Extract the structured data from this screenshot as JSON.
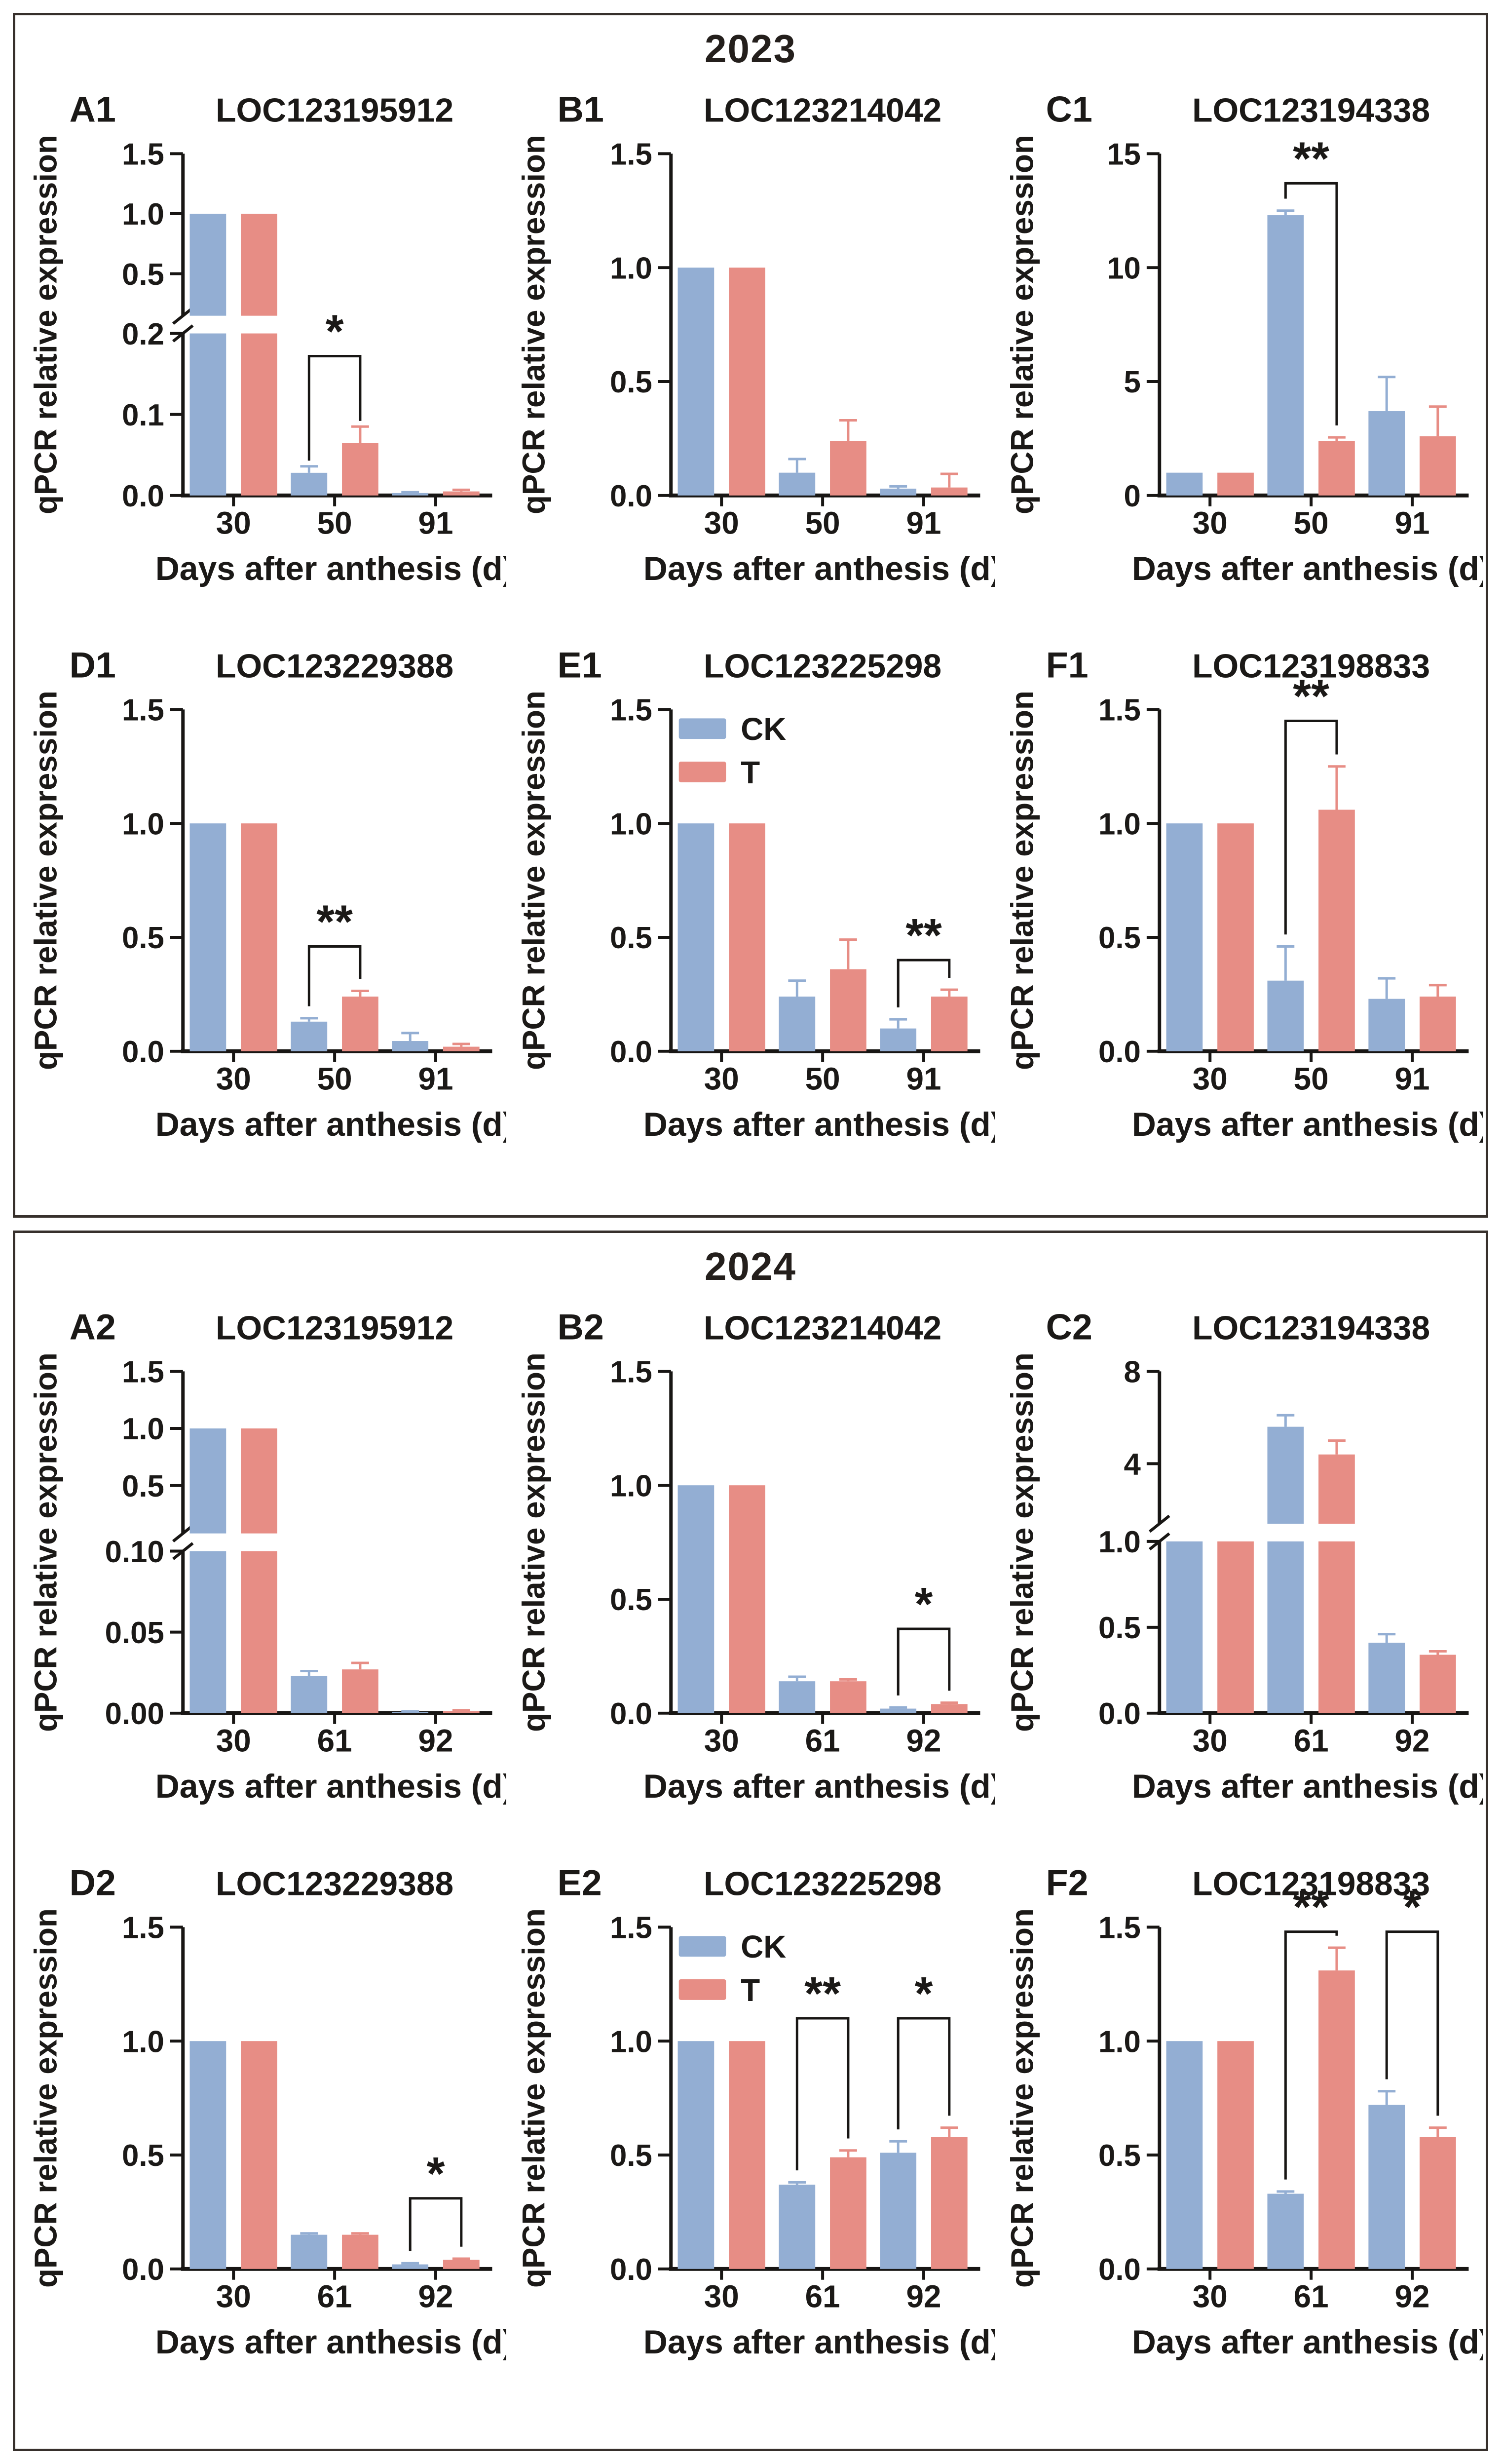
{
  "colors": {
    "ck": "#93AED3",
    "t": "#E78D85",
    "axis": "#181614",
    "frame": "#37302c"
  },
  "legend_labels": {
    "ck": "CK",
    "t": "T"
  },
  "sections": [
    {
      "year": "2023"
    },
    {
      "year": "2024"
    }
  ],
  "chart_data": [
    {
      "panel": "A1",
      "section": 0,
      "type": "bar",
      "title": "LOC123195912",
      "xlabel": "Days after anthesis (d)",
      "ylabel": "qPCR relative expression",
      "categories": [
        "30",
        "50",
        "91"
      ],
      "legend": false,
      "series": [
        {
          "name": "CK",
          "values": [
            1.0,
            0.028,
            0.003
          ],
          "errors": [
            0,
            0.008,
            0.001
          ]
        },
        {
          "name": "T",
          "values": [
            1.0,
            0.065,
            0.005
          ],
          "errors": [
            0,
            0.02,
            0.002
          ]
        }
      ],
      "axis": {
        "broken": true,
        "segments": [
          {
            "range": [
              0,
              0.2
            ],
            "hfrac": 0.5,
            "ticks": [
              {
                "v": 0,
                "l": "0.0"
              },
              {
                "v": 0.1,
                "l": "0.1"
              },
              {
                "v": 0.2,
                "l": "0.2"
              }
            ]
          },
          {
            "range": [
              0.15,
              1.5
            ],
            "hfrac": 0.5,
            "ticks": [
              {
                "v": 0.5,
                "l": "0.5"
              },
              {
                "v": 1.0,
                "l": "1.0"
              },
              {
                "v": 1.5,
                "l": "1.5"
              }
            ]
          }
        ]
      },
      "sig": [
        {
          "cat": 1,
          "label": "*",
          "top": 0.172
        }
      ]
    },
    {
      "panel": "B1",
      "section": 0,
      "type": "bar",
      "title": "LOC123214042",
      "xlabel": "Days after anthesis (d)",
      "ylabel": "qPCR relative expression",
      "categories": [
        "30",
        "50",
        "91"
      ],
      "legend": false,
      "series": [
        {
          "name": "CK",
          "values": [
            1.0,
            0.1,
            0.03
          ],
          "errors": [
            0,
            0.06,
            0.01
          ]
        },
        {
          "name": "T",
          "values": [
            1.0,
            0.24,
            0.035
          ],
          "errors": [
            0,
            0.09,
            0.06
          ]
        }
      ],
      "axis": {
        "broken": false,
        "segments": [
          {
            "range": [
              0,
              1.5
            ],
            "ticks": [
              {
                "v": 0,
                "l": "0.0"
              },
              {
                "v": 0.5,
                "l": "0.5"
              },
              {
                "v": 1.0,
                "l": "1.0"
              },
              {
                "v": 1.5,
                "l": "1.5"
              }
            ]
          }
        ]
      },
      "sig": []
    },
    {
      "panel": "C1",
      "section": 0,
      "type": "bar",
      "title": "LOC123194338",
      "xlabel": "Days after anthesis (d)",
      "ylabel": "qPCR relative expression",
      "categories": [
        "30",
        "50",
        "91"
      ],
      "legend": false,
      "series": [
        {
          "name": "CK",
          "values": [
            1.0,
            12.3,
            3.7
          ],
          "errors": [
            0,
            0.2,
            1.5
          ]
        },
        {
          "name": "T",
          "values": [
            1.0,
            2.4,
            2.6
          ],
          "errors": [
            0,
            0.15,
            1.3
          ]
        }
      ],
      "axis": {
        "broken": false,
        "segments": [
          {
            "range": [
              0,
              15
            ],
            "ticks": [
              {
                "v": 0,
                "l": "0"
              },
              {
                "v": 5,
                "l": "5"
              },
              {
                "v": 10,
                "l": "10"
              },
              {
                "v": 15,
                "l": "15"
              }
            ]
          }
        ]
      },
      "sig": [
        {
          "cat": 1,
          "label": "**",
          "top": 13.7
        }
      ]
    },
    {
      "panel": "D1",
      "section": 0,
      "type": "bar",
      "title": "LOC123229388",
      "xlabel": "Days after anthesis (d)",
      "ylabel": "qPCR relative expression",
      "categories": [
        "30",
        "50",
        "91"
      ],
      "legend": false,
      "series": [
        {
          "name": "CK",
          "values": [
            1.0,
            0.13,
            0.045
          ],
          "errors": [
            0,
            0.015,
            0.035
          ]
        },
        {
          "name": "T",
          "values": [
            1.0,
            0.24,
            0.02
          ],
          "errors": [
            0,
            0.025,
            0.012
          ]
        }
      ],
      "axis": {
        "broken": false,
        "segments": [
          {
            "range": [
              0,
              1.5
            ],
            "ticks": [
              {
                "v": 0,
                "l": "0.0"
              },
              {
                "v": 0.5,
                "l": "0.5"
              },
              {
                "v": 1.0,
                "l": "1.0"
              },
              {
                "v": 1.5,
                "l": "1.5"
              }
            ]
          }
        ]
      },
      "sig": [
        {
          "cat": 1,
          "label": "**",
          "top": 0.46
        }
      ]
    },
    {
      "panel": "E1",
      "section": 0,
      "type": "bar",
      "title": "LOC123225298",
      "xlabel": "Days after anthesis (d)",
      "ylabel": "qPCR relative expression",
      "categories": [
        "30",
        "50",
        "91"
      ],
      "legend": true,
      "series": [
        {
          "name": "CK",
          "values": [
            1.0,
            0.24,
            0.1
          ],
          "errors": [
            0,
            0.07,
            0.04
          ]
        },
        {
          "name": "T",
          "values": [
            1.0,
            0.36,
            0.24
          ],
          "errors": [
            0,
            0.13,
            0.03
          ]
        }
      ],
      "axis": {
        "broken": false,
        "segments": [
          {
            "range": [
              0,
              1.5
            ],
            "ticks": [
              {
                "v": 0,
                "l": "0.0"
              },
              {
                "v": 0.5,
                "l": "0.5"
              },
              {
                "v": 1.0,
                "l": "1.0"
              },
              {
                "v": 1.5,
                "l": "1.5"
              }
            ]
          }
        ]
      },
      "sig": [
        {
          "cat": 2,
          "label": "**",
          "top": 0.4
        }
      ]
    },
    {
      "panel": "F1",
      "section": 0,
      "type": "bar",
      "title": "LOC123198833",
      "xlabel": "Days after anthesis (d)",
      "ylabel": "qPCR relative expression",
      "categories": [
        "30",
        "50",
        "91"
      ],
      "legend": false,
      "series": [
        {
          "name": "CK",
          "values": [
            1.0,
            0.31,
            0.23
          ],
          "errors": [
            0,
            0.15,
            0.09
          ]
        },
        {
          "name": "T",
          "values": [
            1.0,
            1.06,
            0.24
          ],
          "errors": [
            0,
            0.19,
            0.05
          ]
        }
      ],
      "axis": {
        "broken": false,
        "segments": [
          {
            "range": [
              0,
              1.5
            ],
            "ticks": [
              {
                "v": 0,
                "l": "0.0"
              },
              {
                "v": 0.5,
                "l": "0.5"
              },
              {
                "v": 1.0,
                "l": "1.0"
              },
              {
                "v": 1.5,
                "l": "1.5"
              }
            ]
          }
        ]
      },
      "sig": [
        {
          "cat": 1,
          "label": "**",
          "top": 1.45
        }
      ]
    },
    {
      "panel": "A2",
      "section": 1,
      "type": "bar",
      "title": "LOC123195912",
      "xlabel": "Days after anthesis (d)",
      "ylabel": "qPCR relative expression",
      "categories": [
        "30",
        "61",
        "92"
      ],
      "legend": false,
      "series": [
        {
          "name": "CK",
          "values": [
            1.0,
            0.023,
            0.0006
          ],
          "errors": [
            0,
            0.003,
            0.0004
          ]
        },
        {
          "name": "T",
          "values": [
            1.0,
            0.027,
            0.0012
          ],
          "errors": [
            0,
            0.004,
            0.0006
          ]
        }
      ],
      "axis": {
        "broken": true,
        "segments": [
          {
            "range": [
              0,
              0.1
            ],
            "hfrac": 0.5,
            "ticks": [
              {
                "v": 0,
                "l": "0.00"
              },
              {
                "v": 0.05,
                "l": "0.05"
              },
              {
                "v": 0.1,
                "l": "0.10"
              }
            ]
          },
          {
            "range": [
              0.08,
              1.5
            ],
            "hfrac": 0.5,
            "ticks": [
              {
                "v": 0.5,
                "l": "0.5"
              },
              {
                "v": 1.0,
                "l": "1.0"
              },
              {
                "v": 1.5,
                "l": "1.5"
              }
            ]
          }
        ]
      },
      "sig": []
    },
    {
      "panel": "B2",
      "section": 1,
      "type": "bar",
      "title": "LOC123214042",
      "xlabel": "Days after anthesis (d)",
      "ylabel": "qPCR relative expression",
      "categories": [
        "30",
        "61",
        "92"
      ],
      "legend": false,
      "series": [
        {
          "name": "CK",
          "values": [
            1.0,
            0.14,
            0.02
          ],
          "errors": [
            0,
            0.02,
            0.005
          ]
        },
        {
          "name": "T",
          "values": [
            1.0,
            0.14,
            0.04
          ],
          "errors": [
            0,
            0.008,
            0.006
          ]
        }
      ],
      "axis": {
        "broken": false,
        "segments": [
          {
            "range": [
              0,
              1.5
            ],
            "ticks": [
              {
                "v": 0,
                "l": "0.0"
              },
              {
                "v": 0.5,
                "l": "0.5"
              },
              {
                "v": 1.0,
                "l": "1.0"
              },
              {
                "v": 1.5,
                "l": "1.5"
              }
            ]
          }
        ]
      },
      "sig": [
        {
          "cat": 2,
          "label": "*",
          "top": 0.37
        }
      ]
    },
    {
      "panel": "C2",
      "section": 1,
      "type": "bar",
      "title": "LOC123194338",
      "xlabel": "Days after anthesis (d)",
      "ylabel": "qPCR relative expression",
      "categories": [
        "30",
        "61",
        "92"
      ],
      "legend": false,
      "series": [
        {
          "name": "CK",
          "values": [
            1.0,
            5.6,
            0.41
          ],
          "errors": [
            0,
            0.5,
            0.05
          ]
        },
        {
          "name": "T",
          "values": [
            1.0,
            4.4,
            0.34
          ],
          "errors": [
            0,
            0.6,
            0.02
          ]
        }
      ],
      "axis": {
        "broken": true,
        "segments": [
          {
            "range": [
              0,
              1.0
            ],
            "hfrac": 0.53,
            "ticks": [
              {
                "v": 0,
                "l": "0.0"
              },
              {
                "v": 0.5,
                "l": "0.5"
              },
              {
                "v": 1.0,
                "l": "1.0"
              }
            ]
          },
          {
            "range": [
              1.4,
              8
            ],
            "hfrac": 0.47,
            "ticks": [
              {
                "v": 4,
                "l": "4"
              },
              {
                "v": 8,
                "l": "8"
              }
            ]
          }
        ]
      },
      "sig": []
    },
    {
      "panel": "D2",
      "section": 1,
      "type": "bar",
      "title": "LOC123229388",
      "xlabel": "Days after anthesis (d)",
      "ylabel": "qPCR relative expression",
      "categories": [
        "30",
        "61",
        "92"
      ],
      "legend": false,
      "series": [
        {
          "name": "CK",
          "values": [
            1.0,
            0.15,
            0.02
          ],
          "errors": [
            0,
            0.006,
            0.005
          ]
        },
        {
          "name": "T",
          "values": [
            1.0,
            0.15,
            0.04
          ],
          "errors": [
            0,
            0.006,
            0.005
          ]
        }
      ],
      "axis": {
        "broken": false,
        "segments": [
          {
            "range": [
              0,
              1.5
            ],
            "ticks": [
              {
                "v": 0,
                "l": "0.0"
              },
              {
                "v": 0.5,
                "l": "0.5"
              },
              {
                "v": 1.0,
                "l": "1.0"
              },
              {
                "v": 1.5,
                "l": "1.5"
              }
            ]
          }
        ]
      },
      "sig": [
        {
          "cat": 2,
          "label": "*",
          "top": 0.31
        }
      ]
    },
    {
      "panel": "E2",
      "section": 1,
      "type": "bar",
      "title": "LOC123225298",
      "xlabel": "Days after anthesis (d)",
      "ylabel": "qPCR relative expression",
      "categories": [
        "30",
        "61",
        "92"
      ],
      "legend": true,
      "series": [
        {
          "name": "CK",
          "values": [
            1.0,
            0.37,
            0.51
          ],
          "errors": [
            0,
            0.01,
            0.05
          ]
        },
        {
          "name": "T",
          "values": [
            1.0,
            0.49,
            0.58
          ],
          "errors": [
            0,
            0.03,
            0.04
          ]
        }
      ],
      "axis": {
        "broken": false,
        "segments": [
          {
            "range": [
              0,
              1.5
            ],
            "ticks": [
              {
                "v": 0,
                "l": "0.0"
              },
              {
                "v": 0.5,
                "l": "0.5"
              },
              {
                "v": 1.0,
                "l": "1.0"
              },
              {
                "v": 1.5,
                "l": "1.5"
              }
            ]
          }
        ]
      },
      "sig": [
        {
          "cat": 1,
          "label": "**",
          "top": 1.1
        },
        {
          "cat": 2,
          "label": "*",
          "top": 1.1
        }
      ]
    },
    {
      "panel": "F2",
      "section": 1,
      "type": "bar",
      "title": "LOC123198833",
      "xlabel": "Days after anthesis (d)",
      "ylabel": "qPCR relative expression",
      "categories": [
        "30",
        "61",
        "92"
      ],
      "legend": false,
      "series": [
        {
          "name": "CK",
          "values": [
            1.0,
            0.33,
            0.72
          ],
          "errors": [
            0,
            0.01,
            0.06
          ]
        },
        {
          "name": "T",
          "values": [
            1.0,
            1.31,
            0.58
          ],
          "errors": [
            0,
            0.1,
            0.04
          ]
        }
      ],
      "axis": {
        "broken": false,
        "segments": [
          {
            "range": [
              0,
              1.5
            ],
            "ticks": [
              {
                "v": 0,
                "l": "0.0"
              },
              {
                "v": 0.5,
                "l": "0.5"
              },
              {
                "v": 1.0,
                "l": "1.0"
              },
              {
                "v": 1.5,
                "l": "1.5"
              }
            ]
          }
        ]
      },
      "sig": [
        {
          "cat": 1,
          "label": "**",
          "top": 1.48
        },
        {
          "cat": 2,
          "label": "*",
          "top": 1.48
        }
      ]
    }
  ]
}
